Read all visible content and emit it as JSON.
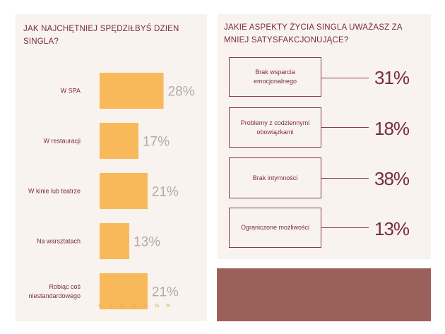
{
  "left": {
    "title": "JAK NAJCHĘTNIEJ SPĘDZIŁBYŚ DZIEN SINGLA?"
  },
  "right": {
    "title": "JAKIE ASPEKTY ŻYCIA SINGLA UWAŻASZ ZA MNIEJ SATYSFAKCJONUJĄCE?",
    "items": [
      {
        "label": "Brak wsparcia emocjonalnego",
        "value": "31%"
      },
      {
        "label": "Problemy z codziennymi obowiązkami",
        "value": "18%"
      },
      {
        "label": "Brak intymności",
        "value": "38%"
      },
      {
        "label": "Ograniczone możliwości",
        "value": "13%"
      }
    ]
  },
  "colors": {
    "bar": "#f7b95a",
    "accent": "#7a2c3a",
    "panel": "#f8f3ee",
    "block": "#9c605a"
  },
  "chart_data": {
    "type": "bar",
    "orientation": "horizontal",
    "title": "JAK NAJCHĘTNIEJ SPĘDZIŁBYŚ DZIEN SINGLA?",
    "categories": [
      "W SPA",
      "W restauracji",
      "W kinie lub teatrze",
      "Na warsztatach",
      "Robiąc coś niestandardowego"
    ],
    "values": [
      28,
      17,
      21,
      13,
      21
    ],
    "value_labels": [
      "28%",
      "17%",
      "21%",
      "13%",
      "21%"
    ],
    "xlim": [
      0,
      30
    ],
    "xticks": [
      "0",
      "5",
      "10",
      "15",
      "20",
      "25",
      "30"
    ],
    "grid": false
  }
}
